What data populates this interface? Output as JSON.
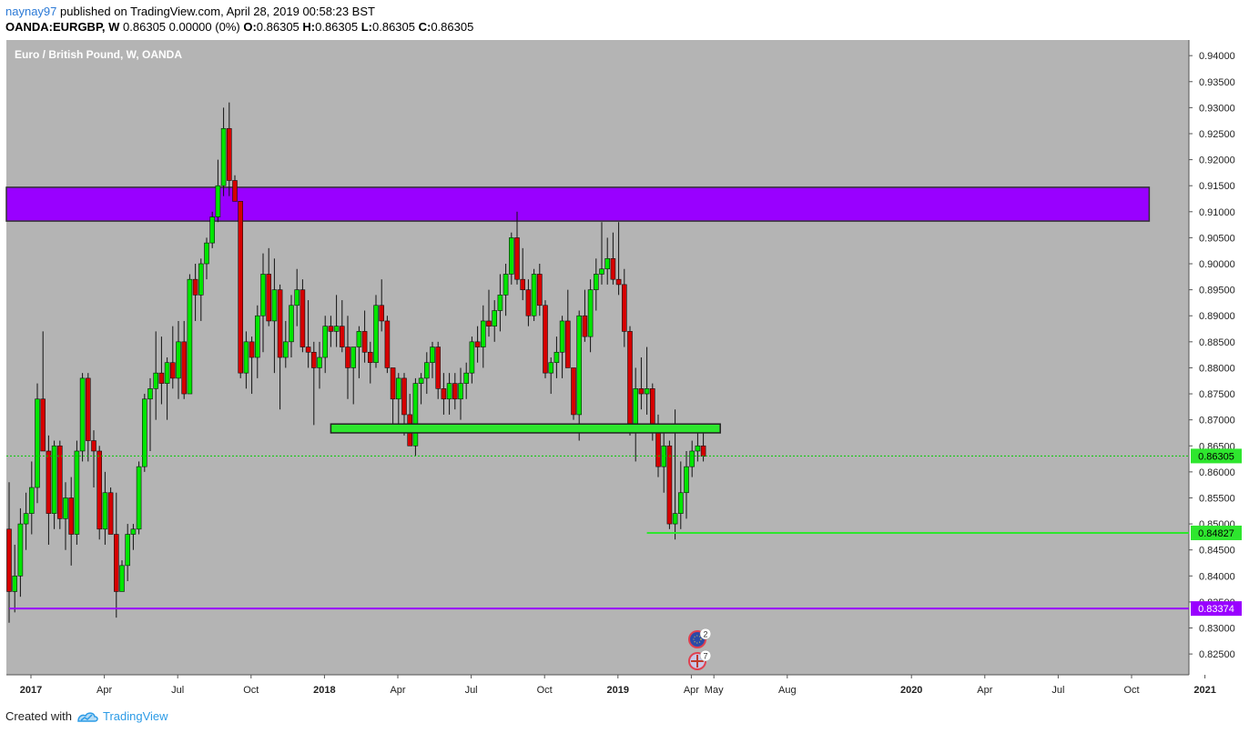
{
  "header": {
    "user": "naynay97",
    "published_text": " published on TradingView.com, April 28, 2019 00:58:23 BST",
    "symbol": "OANDA:EURGBP, W",
    "ohlc": " 0.86305 0.00000 (0%) ",
    "o_label": "O:",
    "o_val": "0.86305 ",
    "h_label": "H:",
    "h_val": "0.86305 ",
    "l_label": "L:",
    "l_val": "0.86305 ",
    "c_label": "C:",
    "c_val": "0.86305"
  },
  "footer": {
    "created_with": "Created with",
    "brand": "TradingView"
  },
  "colors": {
    "background": "#b4b4b4",
    "up": "#00e600",
    "down": "#d60000",
    "resistance_zone": "#9900ff",
    "support_zone": "#2ee62e",
    "price_line": "#00cc00"
  },
  "events": [
    {
      "icon": "eu-flag-icon",
      "count": "2"
    },
    {
      "icon": "uk-flag-icon",
      "count": "7"
    }
  ],
  "chart_data": {
    "type": "candlestick",
    "title": "Euro / British Pound, W, OANDA",
    "ylim": [
      0.821,
      0.943
    ],
    "y_ticks": [
      "0.94000",
      "0.93500",
      "0.93000",
      "0.92500",
      "0.92000",
      "0.91500",
      "0.91000",
      "0.90500",
      "0.90000",
      "0.89500",
      "0.89000",
      "0.88500",
      "0.88000",
      "0.87500",
      "0.87000",
      "0.86500",
      "0.86000",
      "0.85500",
      "0.85000",
      "0.84500",
      "0.84000",
      "0.83500",
      "0.83000",
      "0.82500"
    ],
    "x_labels": [
      "2017",
      "Apr",
      "Jul",
      "Oct",
      "2018",
      "Apr",
      "Jul",
      "Oct",
      "2019",
      "Apr",
      "May",
      "Aug",
      "2020",
      "Apr",
      "Jul",
      "Oct",
      "2021"
    ],
    "x_label_index": [
      0,
      13,
      26,
      39,
      52,
      65,
      78,
      91,
      104,
      117,
      121,
      134,
      156,
      169,
      182,
      195,
      208
    ],
    "candles": [
      {
        "o": 0.849,
        "h": 0.858,
        "l": 0.831,
        "c": 0.837
      },
      {
        "o": 0.837,
        "h": 0.846,
        "l": 0.833,
        "c": 0.84
      },
      {
        "o": 0.84,
        "h": 0.853,
        "l": 0.836,
        "c": 0.85
      },
      {
        "o": 0.85,
        "h": 0.856,
        "l": 0.845,
        "c": 0.852
      },
      {
        "o": 0.852,
        "h": 0.862,
        "l": 0.848,
        "c": 0.857
      },
      {
        "o": 0.857,
        "h": 0.877,
        "l": 0.854,
        "c": 0.874
      },
      {
        "o": 0.874,
        "h": 0.887,
        "l": 0.864,
        "c": 0.864
      },
      {
        "o": 0.864,
        "h": 0.867,
        "l": 0.846,
        "c": 0.852
      },
      {
        "o": 0.852,
        "h": 0.866,
        "l": 0.849,
        "c": 0.865
      },
      {
        "o": 0.865,
        "h": 0.866,
        "l": 0.849,
        "c": 0.851
      },
      {
        "o": 0.851,
        "h": 0.858,
        "l": 0.845,
        "c": 0.855
      },
      {
        "o": 0.855,
        "h": 0.859,
        "l": 0.842,
        "c": 0.848
      },
      {
        "o": 0.848,
        "h": 0.866,
        "l": 0.846,
        "c": 0.864
      },
      {
        "o": 0.864,
        "h": 0.879,
        "l": 0.862,
        "c": 0.878
      },
      {
        "o": 0.878,
        "h": 0.879,
        "l": 0.862,
        "c": 0.866
      },
      {
        "o": 0.866,
        "h": 0.868,
        "l": 0.857,
        "c": 0.864
      },
      {
        "o": 0.864,
        "h": 0.865,
        "l": 0.847,
        "c": 0.849
      },
      {
        "o": 0.849,
        "h": 0.86,
        "l": 0.846,
        "c": 0.856
      },
      {
        "o": 0.856,
        "h": 0.857,
        "l": 0.848,
        "c": 0.848
      },
      {
        "o": 0.848,
        "h": 0.856,
        "l": 0.832,
        "c": 0.837
      },
      {
        "o": 0.837,
        "h": 0.843,
        "l": 0.837,
        "c": 0.842
      },
      {
        "o": 0.842,
        "h": 0.85,
        "l": 0.839,
        "c": 0.848
      },
      {
        "o": 0.848,
        "h": 0.85,
        "l": 0.845,
        "c": 0.849
      },
      {
        "o": 0.849,
        "h": 0.862,
        "l": 0.848,
        "c": 0.861
      },
      {
        "o": 0.861,
        "h": 0.875,
        "l": 0.86,
        "c": 0.874
      },
      {
        "o": 0.874,
        "h": 0.878,
        "l": 0.864,
        "c": 0.876
      },
      {
        "o": 0.876,
        "h": 0.887,
        "l": 0.87,
        "c": 0.879
      },
      {
        "o": 0.879,
        "h": 0.886,
        "l": 0.873,
        "c": 0.877
      },
      {
        "o": 0.877,
        "h": 0.882,
        "l": 0.87,
        "c": 0.881
      },
      {
        "o": 0.881,
        "h": 0.888,
        "l": 0.876,
        "c": 0.878
      },
      {
        "o": 0.878,
        "h": 0.889,
        "l": 0.874,
        "c": 0.885
      },
      {
        "o": 0.885,
        "h": 0.889,
        "l": 0.874,
        "c": 0.875
      },
      {
        "o": 0.875,
        "h": 0.898,
        "l": 0.875,
        "c": 0.897
      },
      {
        "o": 0.897,
        "h": 0.9,
        "l": 0.889,
        "c": 0.894
      },
      {
        "o": 0.894,
        "h": 0.901,
        "l": 0.889,
        "c": 0.9
      },
      {
        "o": 0.9,
        "h": 0.905,
        "l": 0.897,
        "c": 0.904
      },
      {
        "o": 0.904,
        "h": 0.91,
        "l": 0.903,
        "c": 0.909
      },
      {
        "o": 0.909,
        "h": 0.92,
        "l": 0.908,
        "c": 0.915
      },
      {
        "o": 0.915,
        "h": 0.93,
        "l": 0.913,
        "c": 0.926
      },
      {
        "o": 0.926,
        "h": 0.931,
        "l": 0.913,
        "c": 0.916
      },
      {
        "o": 0.916,
        "h": 0.917,
        "l": 0.912,
        "c": 0.912
      },
      {
        "o": 0.912,
        "h": 0.912,
        "l": 0.878,
        "c": 0.879
      },
      {
        "o": 0.879,
        "h": 0.887,
        "l": 0.876,
        "c": 0.885
      },
      {
        "o": 0.885,
        "h": 0.886,
        "l": 0.875,
        "c": 0.882
      },
      {
        "o": 0.882,
        "h": 0.892,
        "l": 0.878,
        "c": 0.89
      },
      {
        "o": 0.89,
        "h": 0.902,
        "l": 0.883,
        "c": 0.898
      },
      {
        "o": 0.898,
        "h": 0.903,
        "l": 0.888,
        "c": 0.889
      },
      {
        "o": 0.889,
        "h": 0.901,
        "l": 0.879,
        "c": 0.895
      },
      {
        "o": 0.895,
        "h": 0.896,
        "l": 0.872,
        "c": 0.882
      },
      {
        "o": 0.882,
        "h": 0.889,
        "l": 0.88,
        "c": 0.885
      },
      {
        "o": 0.885,
        "h": 0.894,
        "l": 0.882,
        "c": 0.892
      },
      {
        "o": 0.892,
        "h": 0.899,
        "l": 0.888,
        "c": 0.895
      },
      {
        "o": 0.895,
        "h": 0.897,
        "l": 0.883,
        "c": 0.884
      },
      {
        "o": 0.884,
        "h": 0.893,
        "l": 0.88,
        "c": 0.883
      },
      {
        "o": 0.883,
        "h": 0.885,
        "l": 0.869,
        "c": 0.88
      },
      {
        "o": 0.88,
        "h": 0.885,
        "l": 0.876,
        "c": 0.882
      },
      {
        "o": 0.882,
        "h": 0.89,
        "l": 0.879,
        "c": 0.888
      },
      {
        "o": 0.888,
        "h": 0.89,
        "l": 0.884,
        "c": 0.887
      },
      {
        "o": 0.887,
        "h": 0.894,
        "l": 0.884,
        "c": 0.888
      },
      {
        "o": 0.888,
        "h": 0.893,
        "l": 0.883,
        "c": 0.884
      },
      {
        "o": 0.884,
        "h": 0.89,
        "l": 0.874,
        "c": 0.88
      },
      {
        "o": 0.88,
        "h": 0.884,
        "l": 0.873,
        "c": 0.884
      },
      {
        "o": 0.884,
        "h": 0.888,
        "l": 0.878,
        "c": 0.887
      },
      {
        "o": 0.887,
        "h": 0.891,
        "l": 0.881,
        "c": 0.883
      },
      {
        "o": 0.883,
        "h": 0.885,
        "l": 0.877,
        "c": 0.881
      },
      {
        "o": 0.881,
        "h": 0.894,
        "l": 0.88,
        "c": 0.892
      },
      {
        "o": 0.892,
        "h": 0.897,
        "l": 0.887,
        "c": 0.889
      },
      {
        "o": 0.889,
        "h": 0.89,
        "l": 0.879,
        "c": 0.88
      },
      {
        "o": 0.88,
        "h": 0.88,
        "l": 0.869,
        "c": 0.874
      },
      {
        "o": 0.874,
        "h": 0.879,
        "l": 0.869,
        "c": 0.878
      },
      {
        "o": 0.878,
        "h": 0.879,
        "l": 0.867,
        "c": 0.871
      },
      {
        "o": 0.871,
        "h": 0.875,
        "l": 0.865,
        "c": 0.865
      },
      {
        "o": 0.865,
        "h": 0.878,
        "l": 0.863,
        "c": 0.877
      },
      {
        "o": 0.877,
        "h": 0.879,
        "l": 0.873,
        "c": 0.878
      },
      {
        "o": 0.878,
        "h": 0.883,
        "l": 0.875,
        "c": 0.881
      },
      {
        "o": 0.881,
        "h": 0.885,
        "l": 0.878,
        "c": 0.884
      },
      {
        "o": 0.884,
        "h": 0.885,
        "l": 0.874,
        "c": 0.876
      },
      {
        "o": 0.876,
        "h": 0.879,
        "l": 0.871,
        "c": 0.874
      },
      {
        "o": 0.874,
        "h": 0.879,
        "l": 0.871,
        "c": 0.877
      },
      {
        "o": 0.877,
        "h": 0.879,
        "l": 0.872,
        "c": 0.874
      },
      {
        "o": 0.874,
        "h": 0.88,
        "l": 0.87,
        "c": 0.877
      },
      {
        "o": 0.877,
        "h": 0.881,
        "l": 0.874,
        "c": 0.879
      },
      {
        "o": 0.879,
        "h": 0.886,
        "l": 0.877,
        "c": 0.885
      },
      {
        "o": 0.885,
        "h": 0.888,
        "l": 0.881,
        "c": 0.884
      },
      {
        "o": 0.884,
        "h": 0.892,
        "l": 0.88,
        "c": 0.889
      },
      {
        "o": 0.889,
        "h": 0.895,
        "l": 0.886,
        "c": 0.888
      },
      {
        "o": 0.888,
        "h": 0.893,
        "l": 0.885,
        "c": 0.891
      },
      {
        "o": 0.891,
        "h": 0.898,
        "l": 0.887,
        "c": 0.894
      },
      {
        "o": 0.894,
        "h": 0.9,
        "l": 0.89,
        "c": 0.898
      },
      {
        "o": 0.898,
        "h": 0.906,
        "l": 0.896,
        "c": 0.905
      },
      {
        "o": 0.905,
        "h": 0.91,
        "l": 0.896,
        "c": 0.897
      },
      {
        "o": 0.897,
        "h": 0.903,
        "l": 0.893,
        "c": 0.895
      },
      {
        "o": 0.895,
        "h": 0.897,
        "l": 0.888,
        "c": 0.89
      },
      {
        "o": 0.89,
        "h": 0.899,
        "l": 0.889,
        "c": 0.898
      },
      {
        "o": 0.898,
        "h": 0.9,
        "l": 0.89,
        "c": 0.892
      },
      {
        "o": 0.892,
        "h": 0.893,
        "l": 0.878,
        "c": 0.879
      },
      {
        "o": 0.879,
        "h": 0.882,
        "l": 0.875,
        "c": 0.881
      },
      {
        "o": 0.881,
        "h": 0.886,
        "l": 0.878,
        "c": 0.883
      },
      {
        "o": 0.883,
        "h": 0.89,
        "l": 0.878,
        "c": 0.889
      },
      {
        "o": 0.889,
        "h": 0.895,
        "l": 0.88,
        "c": 0.88
      },
      {
        "o": 0.88,
        "h": 0.88,
        "l": 0.87,
        "c": 0.871
      },
      {
        "o": 0.871,
        "h": 0.891,
        "l": 0.866,
        "c": 0.89
      },
      {
        "o": 0.89,
        "h": 0.895,
        "l": 0.885,
        "c": 0.886
      },
      {
        "o": 0.886,
        "h": 0.897,
        "l": 0.883,
        "c": 0.895
      },
      {
        "o": 0.895,
        "h": 0.901,
        "l": 0.891,
        "c": 0.898
      },
      {
        "o": 0.898,
        "h": 0.908,
        "l": 0.896,
        "c": 0.899
      },
      {
        "o": 0.899,
        "h": 0.905,
        "l": 0.896,
        "c": 0.901
      },
      {
        "o": 0.901,
        "h": 0.906,
        "l": 0.896,
        "c": 0.897
      },
      {
        "o": 0.897,
        "h": 0.908,
        "l": 0.894,
        "c": 0.896
      },
      {
        "o": 0.896,
        "h": 0.899,
        "l": 0.884,
        "c": 0.887
      },
      {
        "o": 0.887,
        "h": 0.888,
        "l": 0.867,
        "c": 0.868
      },
      {
        "o": 0.868,
        "h": 0.88,
        "l": 0.862,
        "c": 0.876
      },
      {
        "o": 0.876,
        "h": 0.882,
        "l": 0.872,
        "c": 0.875
      },
      {
        "o": 0.875,
        "h": 0.884,
        "l": 0.871,
        "c": 0.876
      },
      {
        "o": 0.876,
        "h": 0.877,
        "l": 0.866,
        "c": 0.868
      },
      {
        "o": 0.868,
        "h": 0.871,
        "l": 0.859,
        "c": 0.861
      },
      {
        "o": 0.861,
        "h": 0.868,
        "l": 0.856,
        "c": 0.865
      },
      {
        "o": 0.865,
        "h": 0.866,
        "l": 0.849,
        "c": 0.85
      },
      {
        "o": 0.85,
        "h": 0.872,
        "l": 0.847,
        "c": 0.852
      },
      {
        "o": 0.852,
        "h": 0.862,
        "l": 0.849,
        "c": 0.856
      },
      {
        "o": 0.856,
        "h": 0.864,
        "l": 0.851,
        "c": 0.861
      },
      {
        "o": 0.861,
        "h": 0.866,
        "l": 0.859,
        "c": 0.864
      },
      {
        "o": 0.864,
        "h": 0.868,
        "l": 0.862,
        "c": 0.865
      },
      {
        "o": 0.865,
        "h": 0.868,
        "l": 0.862,
        "c": 0.863
      }
    ],
    "resistance_zone": {
      "from": 0.9082,
      "to": 0.9147,
      "x_from_index": 0,
      "x_to_index": 202
    },
    "support_zone": {
      "from": 0.8675,
      "to": 0.8692,
      "x_from_index": 57,
      "x_to_index": 126
    },
    "levels": [
      {
        "price": 0.86305,
        "label": "0.86305",
        "style": "dotted"
      },
      {
        "price": 0.84827,
        "label": "0.84827",
        "style": "solid",
        "x_from_index": 113
      },
      {
        "price": 0.83374,
        "label": "0.83374",
        "style": "solid",
        "x_from_index": 0
      }
    ]
  }
}
